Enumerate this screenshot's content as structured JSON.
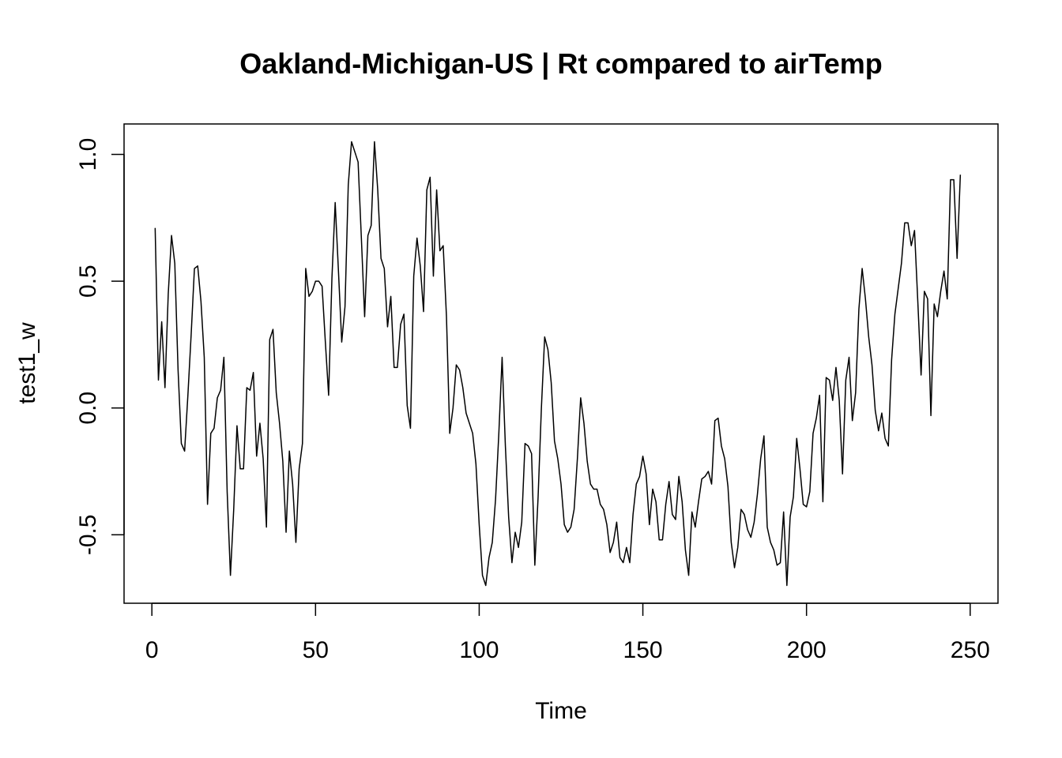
{
  "chart_data": {
    "type": "line",
    "title": "Oakland-Michigan-US | Rt compared to airTemp",
    "xlabel": "Time",
    "ylabel": "test1_w",
    "xlim": [
      -8.5,
      258.5
    ],
    "ylim": [
      -0.77,
      1.12
    ],
    "xticks": [
      0,
      50,
      100,
      150,
      200,
      250
    ],
    "yticks": [
      -0.5,
      0.0,
      0.5,
      1.0
    ],
    "xtick_labels": [
      "0",
      "50",
      "100",
      "150",
      "200",
      "250"
    ],
    "ytick_labels": [
      "-0.5",
      "0.0",
      "0.5",
      "1.0"
    ],
    "grid": false,
    "legend": "none",
    "line_color": "#000000",
    "series": [
      {
        "x_start": 1,
        "values": [
          0.71,
          0.11,
          0.34,
          0.08,
          0.45,
          0.68,
          0.57,
          0.15,
          -0.14,
          -0.17,
          0.05,
          0.29,
          0.55,
          0.56,
          0.42,
          0.2,
          -0.38,
          -0.1,
          -0.08,
          0.04,
          0.07,
          0.2,
          -0.33,
          -0.66,
          -0.4,
          -0.07,
          -0.24,
          -0.24,
          0.08,
          0.07,
          0.14,
          -0.19,
          -0.06,
          -0.2,
          -0.47,
          0.27,
          0.31,
          0.06,
          -0.06,
          -0.21,
          -0.49,
          -0.17,
          -0.3,
          -0.53,
          -0.24,
          -0.14,
          0.55,
          0.44,
          0.46,
          0.5,
          0.5,
          0.48,
          0.26,
          0.05,
          0.51,
          0.81,
          0.54,
          0.26,
          0.4,
          0.88,
          1.05,
          1.01,
          0.97,
          0.67,
          0.36,
          0.68,
          0.72,
          1.05,
          0.86,
          0.59,
          0.55,
          0.32,
          0.44,
          0.16,
          0.16,
          0.33,
          0.37,
          0.01,
          -0.08,
          0.52,
          0.67,
          0.56,
          0.38,
          0.86,
          0.91,
          0.52,
          0.86,
          0.62,
          0.64,
          0.36,
          -0.1,
          0.0,
          0.17,
          0.15,
          0.08,
          -0.02,
          -0.06,
          -0.1,
          -0.22,
          -0.46,
          -0.66,
          -0.7,
          -0.59,
          -0.53,
          -0.36,
          -0.1,
          0.2,
          -0.15,
          -0.43,
          -0.61,
          -0.49,
          -0.55,
          -0.45,
          -0.14,
          -0.15,
          -0.18,
          -0.62,
          -0.35,
          0.0,
          0.28,
          0.23,
          0.1,
          -0.13,
          -0.2,
          -0.3,
          -0.46,
          -0.49,
          -0.47,
          -0.4,
          -0.2,
          0.04,
          -0.06,
          -0.21,
          -0.3,
          -0.32,
          -0.32,
          -0.38,
          -0.4,
          -0.46,
          -0.57,
          -0.53,
          -0.45,
          -0.59,
          -0.61,
          -0.55,
          -0.61,
          -0.42,
          -0.3,
          -0.27,
          -0.19,
          -0.26,
          -0.46,
          -0.32,
          -0.37,
          -0.52,
          -0.52,
          -0.38,
          -0.29,
          -0.42,
          -0.44,
          -0.27,
          -0.37,
          -0.56,
          -0.66,
          -0.41,
          -0.47,
          -0.37,
          -0.28,
          -0.27,
          -0.25,
          -0.3,
          -0.05,
          -0.04,
          -0.15,
          -0.2,
          -0.31,
          -0.53,
          -0.63,
          -0.55,
          -0.4,
          -0.42,
          -0.48,
          -0.51,
          -0.45,
          -0.34,
          -0.2,
          -0.11,
          -0.47,
          -0.53,
          -0.56,
          -0.62,
          -0.61,
          -0.41,
          -0.7,
          -0.43,
          -0.35,
          -0.12,
          -0.24,
          -0.38,
          -0.39,
          -0.33,
          -0.1,
          -0.04,
          0.05,
          -0.37,
          0.12,
          0.11,
          0.03,
          0.16,
          0.03,
          -0.26,
          0.11,
          0.2,
          -0.05,
          0.06,
          0.39,
          0.55,
          0.43,
          0.28,
          0.17,
          -0.01,
          -0.09,
          -0.02,
          -0.12,
          -0.15,
          0.19,
          0.37,
          0.47,
          0.57,
          0.73,
          0.73,
          0.64,
          0.7,
          0.42,
          0.13,
          0.46,
          0.43,
          -0.03,
          0.41,
          0.36,
          0.46,
          0.54,
          0.43,
          0.9,
          0.9,
          0.59,
          0.92
        ]
      }
    ]
  }
}
